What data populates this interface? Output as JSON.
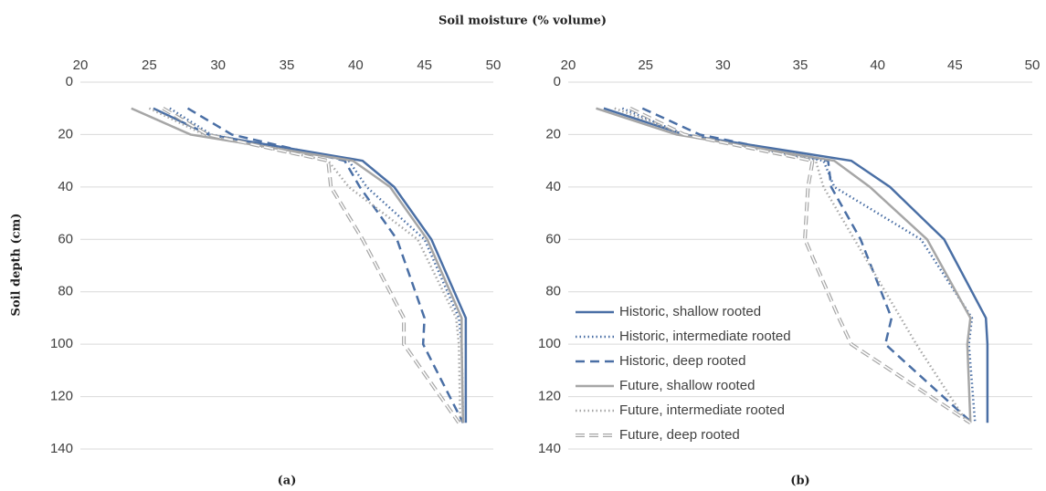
{
  "title": "Soil moisture (% volume)",
  "ylabel": "Soil depth (cm)",
  "chart_data": [
    {
      "type": "line",
      "caption": "(a)",
      "xlim": [
        20,
        50
      ],
      "xticks": [
        20,
        25,
        30,
        35,
        40,
        45,
        50
      ],
      "ylim": [
        0,
        140
      ],
      "yticks": [
        0,
        20,
        40,
        60,
        80,
        100,
        120,
        140
      ],
      "y_inverted": true,
      "grid": true,
      "y": [
        10,
        20,
        30,
        40,
        60,
        90,
        100,
        130
      ],
      "series": [
        {
          "color": "#4a6fa5",
          "style": "solid",
          "values": [
            25.3,
            29.3,
            40.5,
            42.8,
            45.5,
            48.0,
            48.0,
            48.0
          ]
        },
        {
          "color": "#4a6fa5",
          "style": "dotted",
          "values": [
            26.5,
            29.5,
            39.5,
            40.8,
            45.0,
            47.5,
            47.7,
            47.8
          ]
        },
        {
          "color": "#4a6fa5",
          "style": "dashed",
          "values": [
            27.8,
            31.0,
            39.2,
            40.3,
            43.0,
            45.0,
            44.9,
            47.8
          ]
        },
        {
          "color": "#a6a6a6",
          "style": "solid",
          "values": [
            23.7,
            28.0,
            39.8,
            42.5,
            45.2,
            47.7,
            47.7,
            47.8
          ]
        },
        {
          "color": "#a6a6a6",
          "style": "dotted",
          "values": [
            25.0,
            29.0,
            38.0,
            39.5,
            44.5,
            47.3,
            47.5,
            47.6
          ]
        },
        {
          "color": "#a6a6a6",
          "style": "hollow-dashed",
          "values": [
            26.0,
            29.2,
            38.0,
            38.2,
            40.5,
            43.5,
            43.5,
            47.5
          ]
        }
      ]
    },
    {
      "type": "line",
      "caption": "(b)",
      "xlim": [
        20,
        50
      ],
      "xticks": [
        20,
        25,
        30,
        35,
        40,
        45,
        50
      ],
      "ylim": [
        0,
        140
      ],
      "yticks": [
        0,
        20,
        40,
        60,
        80,
        100,
        120,
        140
      ],
      "y_inverted": true,
      "grid": true,
      "legend": "lower left",
      "y": [
        10,
        20,
        30,
        40,
        60,
        90,
        100,
        130
      ],
      "series": [
        {
          "name": "Historic, shallow rooted",
          "color": "#4a6fa5",
          "style": "solid",
          "values": [
            22.3,
            27.5,
            38.3,
            40.8,
            44.3,
            47.0,
            47.1,
            47.1
          ]
        },
        {
          "name": "Historic, intermediate rooted",
          "color": "#4a6fa5",
          "style": "dotted",
          "values": [
            23.5,
            27.5,
            36.5,
            37.2,
            42.8,
            46.1,
            45.9,
            46.3
          ]
        },
        {
          "name": "Historic, deep rooted",
          "color": "#4a6fa5",
          "style": "dashed",
          "values": [
            24.8,
            28.5,
            36.8,
            37.0,
            38.9,
            40.9,
            40.5,
            46.1
          ]
        },
        {
          "name": "Future, shallow rooted",
          "color": "#a6a6a6",
          "style": "solid",
          "values": [
            21.8,
            27.0,
            37.2,
            39.5,
            43.2,
            46.0,
            45.8,
            46.0
          ]
        },
        {
          "name": "Future, intermediate rooted",
          "color": "#a6a6a6",
          "style": "dotted",
          "values": [
            23.0,
            27.5,
            36.0,
            36.5,
            38.5,
            41.5,
            42.5,
            45.8
          ]
        },
        {
          "name": "Future, deep rooted",
          "color": "#a6a6a6",
          "style": "hollow-dashed",
          "values": [
            24.0,
            27.5,
            35.8,
            35.5,
            35.3,
            37.5,
            38.3,
            46.0
          ]
        }
      ]
    }
  ]
}
